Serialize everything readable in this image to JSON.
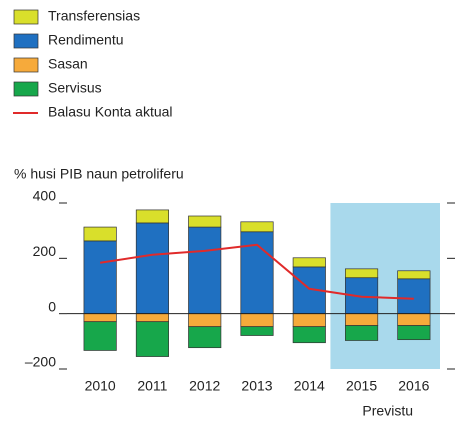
{
  "chart_data": {
    "type": "bar",
    "subtitle": "% husi PIB naun petroliferu",
    "categories": [
      "2010",
      "2011",
      "2012",
      "2013",
      "2014",
      "2015",
      "2016"
    ],
    "series": [
      {
        "name": "Transferensias",
        "color": "#d9df2b",
        "values": [
          50,
          47,
          40,
          36,
          33,
          32,
          29
        ]
      },
      {
        "name": "Rendimentu",
        "color": "#1f70c1",
        "values": [
          263,
          328,
          313,
          296,
          169,
          130,
          126
        ]
      },
      {
        "name": "Sasan",
        "color": "#f6aa3b",
        "values": [
          -29,
          -29,
          -47,
          -47,
          -47,
          -43,
          -43
        ]
      },
      {
        "name": "Servisus",
        "color": "#17a74b",
        "values": [
          -104,
          -126,
          -76,
          -32,
          -58,
          -54,
          -51
        ]
      },
      {
        "name": "Balasu Konta aktual",
        "type": "line",
        "color": "#e02a2a",
        "values": [
          184,
          213,
          227,
          249,
          90,
          61,
          54
        ]
      }
    ],
    "forecast_label": "Previstu",
    "ylim": [
      -200,
      400
    ],
    "yticks": [
      400,
      200,
      0,
      {
        "value": -200,
        "label": "–200"
      }
    ]
  }
}
